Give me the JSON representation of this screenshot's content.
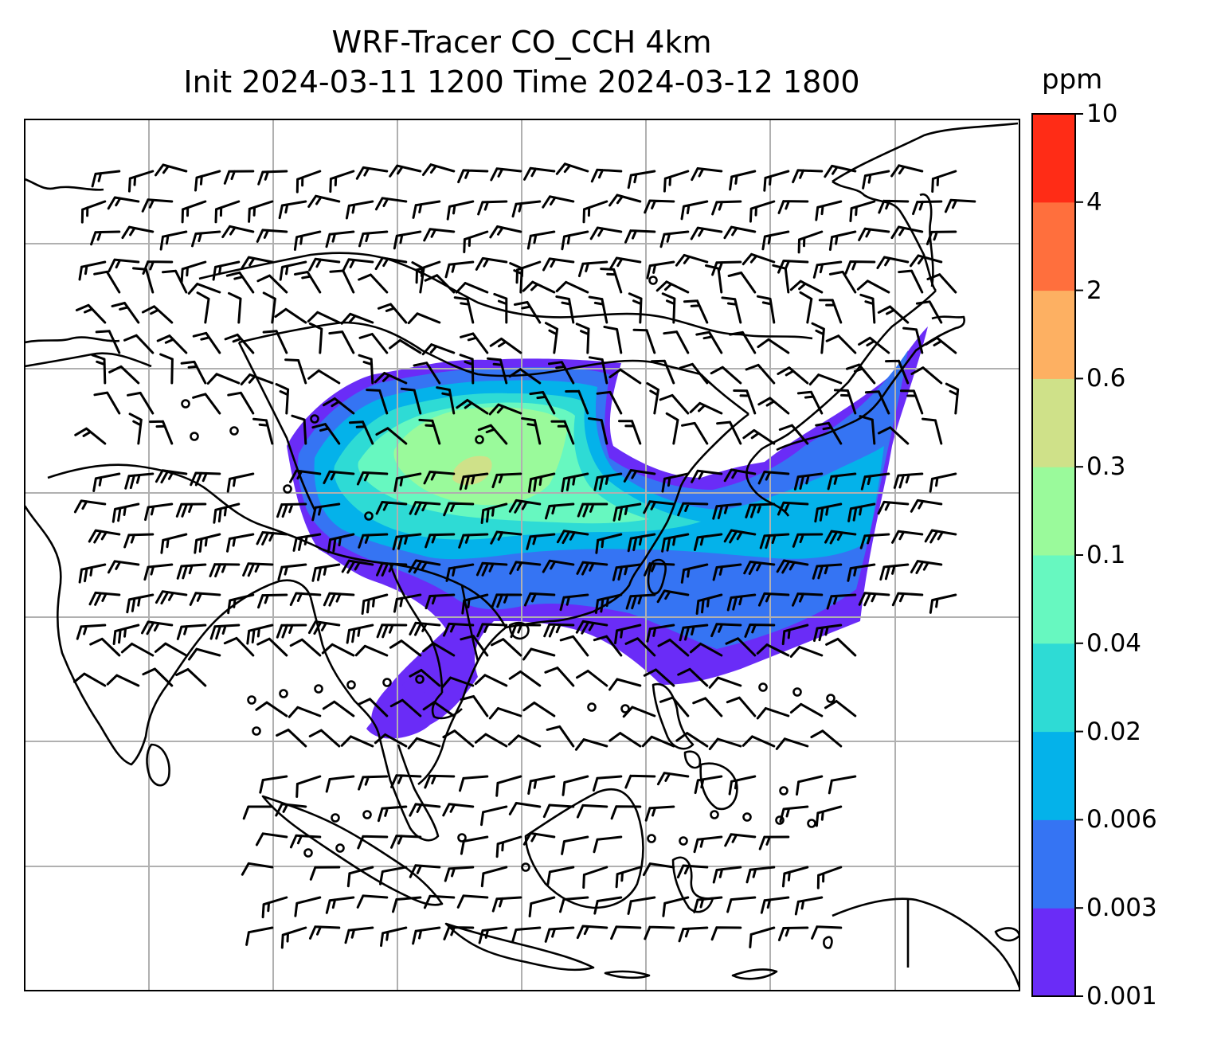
{
  "title_line1": "WRF-Tracer CO_CCH 4km",
  "title_line2": "Init 2024-03-11 1200 Time 2024-03-12 1800",
  "colorbar": {
    "unit": "ppm",
    "ticks": [
      "0.001",
      "0.003",
      "0.006",
      "0.02",
      "0.04",
      "0.1",
      "0.3",
      "0.6",
      "2",
      "4",
      "10"
    ],
    "colors": [
      "#6a2cf7",
      "#3574f3",
      "#04b2ea",
      "#2edbd5",
      "#67f8c0",
      "#9afa9b",
      "#cfe189",
      "#fdb062",
      "#ff6f3d",
      "#ff2c16"
    ]
  },
  "map": {
    "gridlines": "on",
    "coastlines": "on",
    "wind_barbs": "on",
    "plume_levels": [
      "0.001",
      "0.003",
      "0.006",
      "0.02",
      "0.04",
      "0.1",
      "0.3"
    ]
  }
}
